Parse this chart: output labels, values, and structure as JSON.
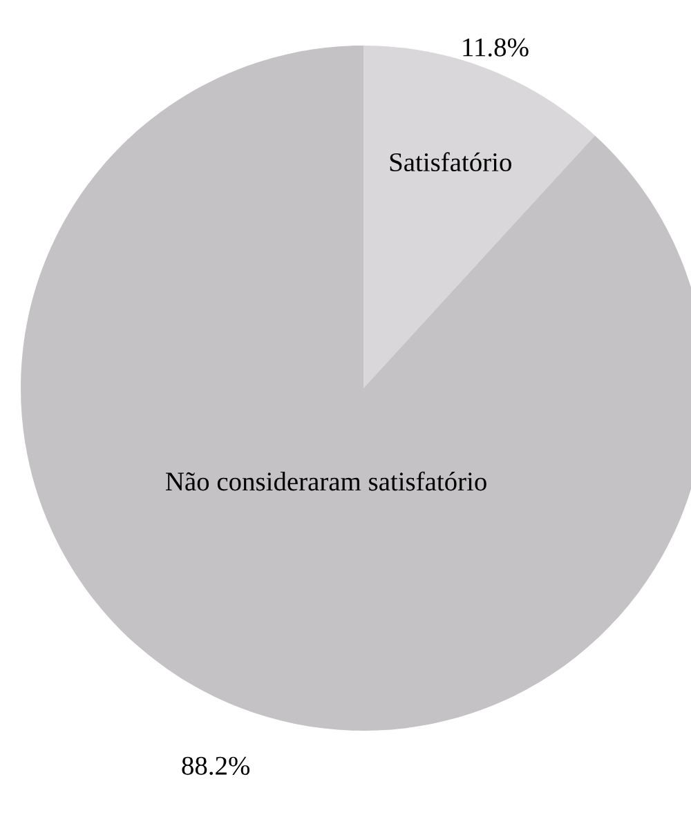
{
  "chart_data": {
    "type": "pie",
    "categories": [
      "Satisfatório",
      "Não consideraram satisfatório"
    ],
    "values": [
      11.8,
      88.2
    ],
    "colors": [
      "#d9d7d9",
      "#c4c2c4"
    ],
    "value_labels": [
      "11.8%",
      "88.2%"
    ]
  }
}
